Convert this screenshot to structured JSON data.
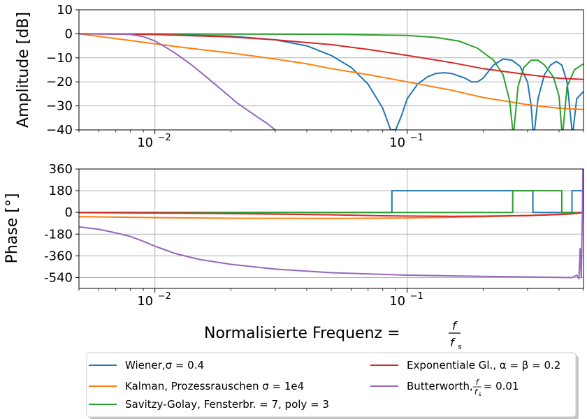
{
  "chart_data": [
    {
      "type": "line",
      "xscale": "log",
      "xlim": [
        0.005,
        0.5
      ],
      "ylim": [
        -40,
        10
      ],
      "ylabel": "Amplitude [dB]",
      "yticks": [
        "10",
        "0",
        "−10",
        "−20",
        "−30",
        "−40"
      ],
      "xticks": [
        {
          "base": "10",
          "exp": "−2",
          "value": 0.01
        },
        {
          "base": "10",
          "exp": "−1",
          "value": 0.1
        }
      ],
      "grid": true,
      "series": [
        {
          "name": "Wiener,σ = 0.4",
          "color": "#1f77b4",
          "points": [
            [
              0.005,
              0
            ],
            [
              0.01,
              -0.2
            ],
            [
              0.02,
              -1
            ],
            [
              0.03,
              -2.5
            ],
            [
              0.04,
              -5
            ],
            [
              0.05,
              -9
            ],
            [
              0.06,
              -14
            ],
            [
              0.07,
              -21
            ],
            [
              0.08,
              -31
            ],
            [
              0.086,
              -40
            ],
            [
              0.09,
              -40
            ],
            [
              0.095,
              -34
            ],
            [
              0.1,
              -27
            ],
            [
              0.11,
              -21
            ],
            [
              0.12,
              -18
            ],
            [
              0.13,
              -16.5
            ],
            [
              0.14,
              -16.2
            ],
            [
              0.15,
              -16.5
            ],
            [
              0.17,
              -18.5
            ],
            [
              0.18,
              -20
            ],
            [
              0.19,
              -20
            ],
            [
              0.2,
              -18.5
            ],
            [
              0.22,
              -13
            ],
            [
              0.24,
              -10.5
            ],
            [
              0.26,
              -11
            ],
            [
              0.28,
              -13.5
            ],
            [
              0.3,
              -20
            ],
            [
              0.31,
              -30
            ],
            [
              0.315,
              -40
            ],
            [
              0.32,
              -40
            ],
            [
              0.33,
              -27
            ],
            [
              0.35,
              -17
            ],
            [
              0.37,
              -13
            ],
            [
              0.39,
              -11.5
            ],
            [
              0.41,
              -13
            ],
            [
              0.43,
              -20
            ],
            [
              0.45,
              -40
            ],
            [
              0.455,
              -40
            ],
            [
              0.47,
              -27
            ],
            [
              0.5,
              -24
            ]
          ]
        },
        {
          "name": "Kalman, Prozessrauschen σ = 1e4",
          "color": "#ff7f0e",
          "points": [
            [
              0.005,
              0
            ],
            [
              0.007,
              -2
            ],
            [
              0.01,
              -4.2
            ],
            [
              0.015,
              -6.5
            ],
            [
              0.02,
              -8
            ],
            [
              0.03,
              -10.5
            ],
            [
              0.04,
              -12.5
            ],
            [
              0.05,
              -14.5
            ],
            [
              0.07,
              -17
            ],
            [
              0.1,
              -20
            ],
            [
              0.15,
              -23.5
            ],
            [
              0.2,
              -26.5
            ],
            [
              0.3,
              -29.5
            ],
            [
              0.4,
              -31
            ],
            [
              0.5,
              -31.5
            ]
          ]
        },
        {
          "name": "Savitzy-Golay, Fensterbr. = 7, poly = 3",
          "color": "#2ca02c",
          "points": [
            [
              0.005,
              0
            ],
            [
              0.05,
              -0.2
            ],
            [
              0.1,
              -0.7
            ],
            [
              0.13,
              -1.5
            ],
            [
              0.16,
              -3
            ],
            [
              0.19,
              -6
            ],
            [
              0.22,
              -11
            ],
            [
              0.24,
              -17
            ],
            [
              0.255,
              -28
            ],
            [
              0.262,
              -40
            ],
            [
              0.265,
              -40
            ],
            [
              0.275,
              -22
            ],
            [
              0.29,
              -14
            ],
            [
              0.31,
              -11
            ],
            [
              0.33,
              -11
            ],
            [
              0.35,
              -13
            ],
            [
              0.38,
              -18
            ],
            [
              0.4,
              -26
            ],
            [
              0.41,
              -40
            ],
            [
              0.415,
              -40
            ],
            [
              0.43,
              -22
            ],
            [
              0.46,
              -15
            ],
            [
              0.5,
              -12.5
            ]
          ]
        },
        {
          "name": "Exponentiale Gl., α = β = 0.2",
          "color": "#d62728",
          "points": [
            [
              0.005,
              0
            ],
            [
              0.01,
              -0.3
            ],
            [
              0.02,
              -1.3
            ],
            [
              0.03,
              -2.5
            ],
            [
              0.05,
              -4.5
            ],
            [
              0.07,
              -6.5
            ],
            [
              0.1,
              -9
            ],
            [
              0.15,
              -12
            ],
            [
              0.2,
              -14.5
            ],
            [
              0.3,
              -17
            ],
            [
              0.4,
              -18.5
            ],
            [
              0.5,
              -19
            ]
          ]
        },
        {
          "name": "Butterworth, f/fs = 0.01",
          "color": "#9467bd",
          "points": [
            [
              0.005,
              0
            ],
            [
              0.006,
              0
            ],
            [
              0.007,
              -0.05
            ],
            [
              0.008,
              -0.3
            ],
            [
              0.009,
              -1.2
            ],
            [
              0.01,
              -3
            ],
            [
              0.011,
              -5.5
            ],
            [
              0.012,
              -8
            ],
            [
              0.014,
              -13
            ],
            [
              0.016,
              -18
            ],
            [
              0.018,
              -22.5
            ],
            [
              0.02,
              -26.5
            ],
            [
              0.021,
              -28.5
            ],
            [
              0.022,
              -30
            ],
            [
              0.025,
              -34
            ],
            [
              0.028,
              -37.5
            ],
            [
              0.03,
              -40
            ]
          ]
        }
      ]
    },
    {
      "type": "line",
      "xscale": "log",
      "xlim": [
        0.005,
        0.5
      ],
      "ylim": [
        -630,
        360
      ],
      "ylabel": "Phase [°]",
      "xlabel_prefix": "Normalisierte Frequenz = ",
      "xlabel_num": "f",
      "xlabel_den": "f",
      "xlabel_den_sub": "s",
      "yticks": [
        {
          "label": "360",
          "value": 360
        },
        {
          "label": "180",
          "value": 180
        },
        {
          "label": "0",
          "value": 0
        },
        {
          "label": "-180",
          "value": -180
        },
        {
          "label": "-360",
          "value": -360
        },
        {
          "label": "-540",
          "value": -540
        }
      ],
      "xticks": [
        {
          "base": "10",
          "exp": "−2",
          "value": 0.01
        },
        {
          "base": "10",
          "exp": "−1",
          "value": 0.1
        }
      ],
      "grid": true,
      "series": [
        {
          "name": "Wiener,σ = 0.4",
          "color": "#1f77b4",
          "points": [
            [
              0.005,
              0
            ],
            [
              0.087,
              0
            ],
            [
              0.087,
              180
            ],
            [
              0.315,
              180
            ],
            [
              0.315,
              0
            ],
            [
              0.45,
              0
            ],
            [
              0.45,
              180
            ],
            [
              0.5,
              180
            ]
          ]
        },
        {
          "name": "Kalman, Prozessrauschen σ = 1e4",
          "color": "#ff7f0e",
          "points": [
            [
              0.005,
              -35
            ],
            [
              0.01,
              -43
            ],
            [
              0.02,
              -48
            ],
            [
              0.05,
              -50
            ],
            [
              0.1,
              -46
            ],
            [
              0.2,
              -36
            ],
            [
              0.3,
              -25
            ],
            [
              0.4,
              -14
            ],
            [
              0.45,
              -8
            ],
            [
              0.5,
              0
            ]
          ]
        },
        {
          "name": "Savitzy-Golay, Fensterbr. = 7, poly = 3",
          "color": "#2ca02c",
          "points": [
            [
              0.005,
              0
            ],
            [
              0.262,
              0
            ],
            [
              0.262,
              180
            ],
            [
              0.41,
              180
            ],
            [
              0.41,
              0
            ],
            [
              0.5,
              0
            ]
          ]
        },
        {
          "name": "Exponentiale Gl., α = β = 0.2",
          "color": "#d62728",
          "points": [
            [
              0.005,
              -2
            ],
            [
              0.01,
              -5
            ],
            [
              0.02,
              -10
            ],
            [
              0.05,
              -20
            ],
            [
              0.08,
              -28
            ],
            [
              0.1,
              -30
            ],
            [
              0.15,
              -32
            ],
            [
              0.2,
              -31
            ],
            [
              0.3,
              -26
            ],
            [
              0.4,
              -18
            ],
            [
              0.45,
              -12
            ],
            [
              0.5,
              0
            ]
          ]
        },
        {
          "name": "Butterworth, f/fs = 0.01",
          "color": "#9467bd",
          "points": [
            [
              0.005,
              -120
            ],
            [
              0.006,
              -140
            ],
            [
              0.007,
              -170
            ],
            [
              0.008,
              -200
            ],
            [
              0.009,
              -240
            ],
            [
              0.01,
              -280
            ],
            [
              0.012,
              -340
            ],
            [
              0.015,
              -390
            ],
            [
              0.02,
              -430
            ],
            [
              0.03,
              -470
            ],
            [
              0.05,
              -500
            ],
            [
              0.1,
              -520
            ],
            [
              0.2,
              -530
            ],
            [
              0.3,
              -535
            ],
            [
              0.45,
              -540
            ],
            [
              0.47,
              -520
            ],
            [
              0.48,
              -550
            ],
            [
              0.485,
              -300
            ],
            [
              0.49,
              -540
            ],
            [
              0.495,
              0
            ],
            [
              0.497,
              360
            ],
            [
              0.5,
              360
            ]
          ]
        }
      ]
    }
  ],
  "legend": {
    "position": "bottom",
    "entries": [
      {
        "text": "Wiener,σ = 0.4",
        "color": "#1f77b4"
      },
      {
        "text": "Kalman, Prozessrauschen σ = 1e4",
        "color": "#ff7f0e"
      },
      {
        "text": "Savitzy-Golay, Fensterbr. = 7, poly = 3",
        "color": "#2ca02c"
      },
      {
        "text": "Exponentiale Gl., α = β = 0.2",
        "color": "#d62728"
      },
      {
        "text": "Butterworth, ",
        "frac_num": "f",
        "frac_den": "f",
        "frac_sub": "s",
        "tail": " = 0.01",
        "color": "#9467bd"
      }
    ]
  }
}
